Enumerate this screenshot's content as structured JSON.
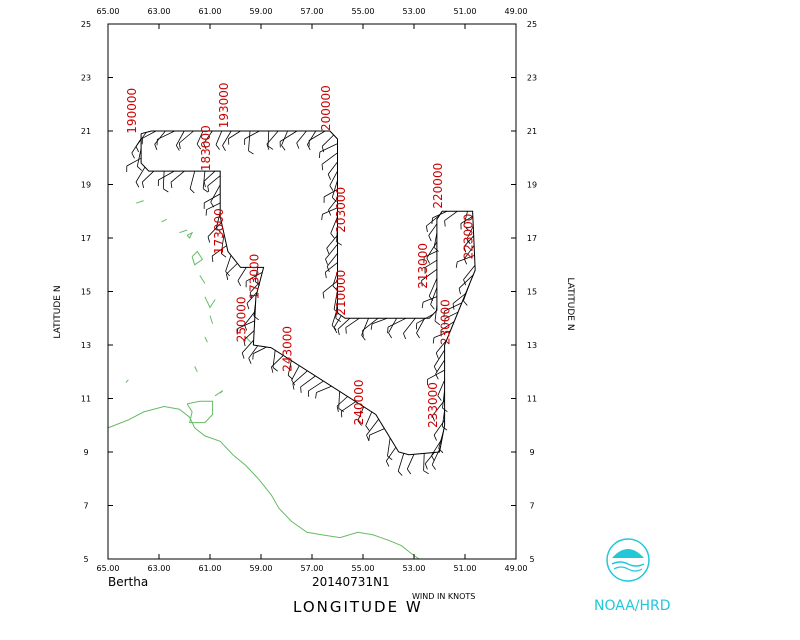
{
  "map": {
    "storm_name": "Bertha",
    "flight_id": "20140731N1",
    "x_axis_title": "LONGITUDE   W",
    "y_axis_title_left": "LATITUDE   N",
    "y_axis_title_right": "LATITUDE   N",
    "wind_units": "WIND IN KNOTS",
    "agency": "NOAA/HRD",
    "logo_text": "NOAA",
    "longitude_range": [
      65,
      49
    ],
    "latitude_range": [
      5,
      25
    ],
    "longitude_ticks": [
      "65.00",
      "63.00",
      "61.00",
      "59.00",
      "57.00",
      "55.00",
      "53.00",
      "51.00",
      "49.00"
    ],
    "latitude_ticks": [
      "25",
      "23",
      "21",
      "19",
      "17",
      "15",
      "13",
      "11",
      "9",
      "7",
      "5"
    ],
    "colors": {
      "track": "#000000",
      "coast": "#66bb66",
      "time_labels": "#cc0000",
      "agency": "#22c8d8"
    }
  },
  "chart_data": {
    "type": "track-map",
    "track": [
      [
        -63.7,
        20.9
      ],
      [
        -63.3,
        21.0
      ],
      [
        -56.3,
        21.0
      ],
      [
        -56.0,
        20.7
      ],
      [
        -56.0,
        14.2
      ],
      [
        -55.7,
        14.0
      ],
      [
        -52.4,
        14.0
      ],
      [
        -52.1,
        14.3
      ],
      [
        -52.1,
        17.7
      ],
      [
        -51.9,
        18.0
      ],
      [
        -50.7,
        18.0
      ],
      [
        -50.6,
        15.8
      ],
      [
        -51.8,
        13.0
      ],
      [
        -51.8,
        10.0
      ],
      [
        -52.0,
        9.0
      ],
      [
        -53.2,
        8.9
      ],
      [
        -53.6,
        9.0
      ],
      [
        -54.5,
        10.4
      ],
      [
        -58.6,
        12.9
      ],
      [
        -59.3,
        13.0
      ],
      [
        -59.2,
        14.8
      ],
      [
        -58.9,
        15.9
      ],
      [
        -59.8,
        15.9
      ],
      [
        -60.3,
        16.5
      ],
      [
        -60.6,
        17.8
      ],
      [
        -60.6,
        19.5
      ],
      [
        -63.4,
        19.5
      ],
      [
        -63.7,
        19.8
      ],
      [
        -63.7,
        20.9
      ]
    ],
    "time_labels": [
      {
        "text": "190000",
        "lon": -63.9,
        "lat": 20.9
      },
      {
        "text": "193000",
        "lon": -60.3,
        "lat": 21.1
      },
      {
        "text": "200000",
        "lon": -56.3,
        "lat": 21.0
      },
      {
        "text": "183000",
        "lon": -61.0,
        "lat": 19.5
      },
      {
        "text": "173000",
        "lon": -60.5,
        "lat": 16.4
      },
      {
        "text": "173000",
        "lon": -59.1,
        "lat": 14.7
      },
      {
        "text": "250000",
        "lon": -59.6,
        "lat": 13.1
      },
      {
        "text": "243000",
        "lon": -57.8,
        "lat": 12.0
      },
      {
        "text": "203000",
        "lon": -55.7,
        "lat": 17.2
      },
      {
        "text": "210000",
        "lon": -55.7,
        "lat": 14.1
      },
      {
        "text": "213000",
        "lon": -52.5,
        "lat": 15.1
      },
      {
        "text": "220000",
        "lon": -51.9,
        "lat": 18.1
      },
      {
        "text": "223000",
        "lon": -50.7,
        "lat": 16.2
      },
      {
        "text": "230000",
        "lon": -51.6,
        "lat": 13.0
      },
      {
        "text": "233000",
        "lon": -52.1,
        "lat": 9.9
      },
      {
        "text": "240000",
        "lon": -55.0,
        "lat": 10.0
      }
    ],
    "coastlines": [
      [
        [
          -65,
          9.9
        ],
        [
          -64.2,
          10.2
        ],
        [
          -63.6,
          10.5
        ],
        [
          -62.8,
          10.7
        ],
        [
          -62.2,
          10.6
        ],
        [
          -61.8,
          10.3
        ],
        [
          -61.6,
          9.9
        ],
        [
          -61.2,
          9.6
        ],
        [
          -60.6,
          9.4
        ],
        [
          -60.1,
          8.9
        ],
        [
          -59.6,
          8.5
        ],
        [
          -59.1,
          8.0
        ],
        [
          -58.6,
          7.4
        ],
        [
          -58.3,
          6.9
        ],
        [
          -57.8,
          6.4
        ],
        [
          -57.2,
          6.0
        ],
        [
          -56.6,
          5.9
        ],
        [
          -55.9,
          5.8
        ],
        [
          -55.2,
          6.0
        ],
        [
          -54.6,
          5.9
        ],
        [
          -54.0,
          5.7
        ],
        [
          -53.5,
          5.5
        ],
        [
          -53.1,
          5.2
        ],
        [
          -52.8,
          5.0
        ]
      ],
      [
        [
          -61.9,
          10.8
        ],
        [
          -61.4,
          10.9
        ],
        [
          -60.9,
          10.9
        ],
        [
          -60.9,
          10.4
        ],
        [
          -61.2,
          10.1
        ],
        [
          -61.8,
          10.1
        ],
        [
          -61.7,
          10.5
        ],
        [
          -61.9,
          10.8
        ]
      ],
      [
        [
          -60.8,
          11.1
        ],
        [
          -60.5,
          11.3
        ],
        [
          -60.6,
          11.2
        ]
      ],
      [
        [
          -63.9,
          18.3
        ],
        [
          -63.6,
          18.4
        ]
      ],
      [
        [
          -62.9,
          17.6
        ],
        [
          -62.7,
          17.7
        ]
      ],
      [
        [
          -62.2,
          17.2
        ],
        [
          -61.9,
          17.3
        ]
      ],
      [
        [
          -61.9,
          17.1
        ],
        [
          -61.7,
          17.2
        ],
        [
          -61.8,
          17.0
        ],
        [
          -61.9,
          17.1
        ]
      ],
      [
        [
          -61.7,
          16.3
        ],
        [
          -61.5,
          16.5
        ],
        [
          -61.3,
          16.2
        ],
        [
          -61.6,
          16.0
        ],
        [
          -61.7,
          16.3
        ]
      ],
      [
        [
          -61.4,
          15.6
        ],
        [
          -61.2,
          15.3
        ]
      ],
      [
        [
          -61.2,
          14.8
        ],
        [
          -61.0,
          14.4
        ],
        [
          -60.8,
          14.7
        ]
      ],
      [
        [
          -61.0,
          14.1
        ],
        [
          -60.9,
          13.8
        ]
      ],
      [
        [
          -61.2,
          13.3
        ],
        [
          -61.1,
          13.1
        ]
      ],
      [
        [
          -61.6,
          12.2
        ],
        [
          -61.5,
          12.0
        ]
      ],
      [
        [
          -59.6,
          13.3
        ],
        [
          -59.4,
          13.1
        ]
      ],
      [
        [
          -64.3,
          11.6
        ],
        [
          -64.2,
          11.7
        ]
      ]
    ]
  }
}
